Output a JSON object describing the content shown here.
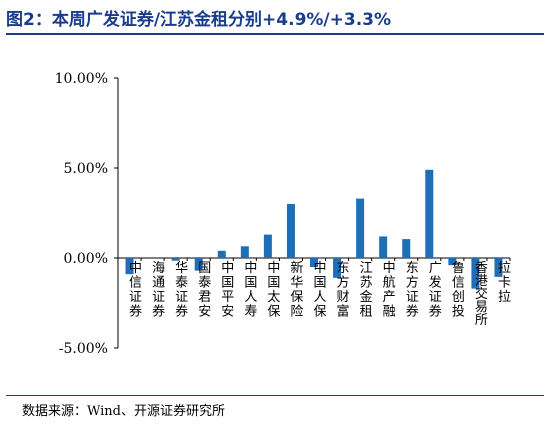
{
  "title": "图2：本周广发证券/江苏金租分别+4.9%/+3.3%",
  "source": "数据来源：Wind、开源证券研究所",
  "colors": {
    "bar": "#1f6fb6",
    "title": "#1a3c8c"
  },
  "chart_data": {
    "type": "bar",
    "categories": [
      "中信证券",
      "海通证券",
      "华泰证券",
      "国泰君安",
      "中国平安",
      "中国人寿",
      "中国太保",
      "新华保险",
      "中国人保",
      "东方财富",
      "江苏金租",
      "中航产融",
      "东方证券",
      "广发证券",
      "鲁信创投",
      "香港交易所",
      "拉卡拉"
    ],
    "values": [
      -0.9,
      0.0,
      -0.15,
      -0.7,
      0.4,
      0.65,
      1.3,
      3.0,
      -0.5,
      -1.1,
      3.3,
      1.2,
      1.05,
      4.9,
      -0.4,
      -1.7,
      -1.05
    ],
    "unit": "%",
    "yticks": [
      "10.00%",
      "5.00%",
      "0.00%",
      "-5.00%"
    ],
    "ytick_values": [
      10,
      5,
      0,
      -5
    ],
    "ylim": [
      -5,
      10
    ],
    "xlabel": "",
    "ylabel": "",
    "grid": false
  }
}
